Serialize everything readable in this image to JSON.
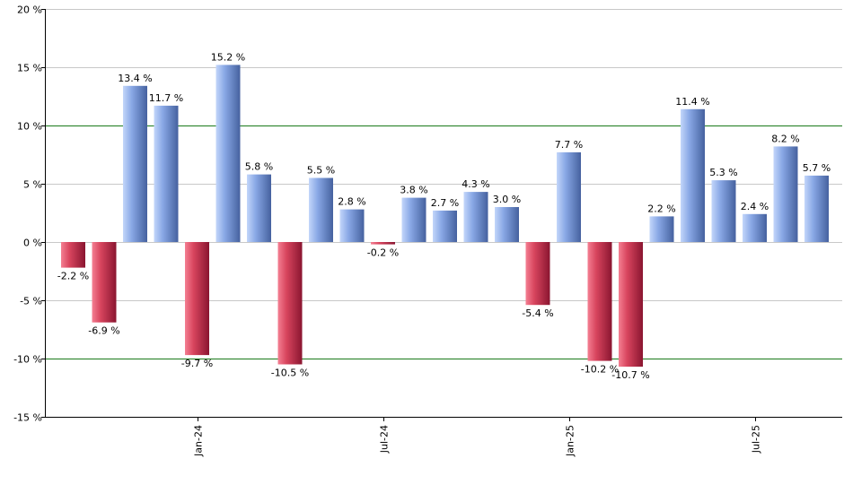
{
  "chart_data": {
    "type": "bar",
    "title": "",
    "xlabel": "",
    "ylabel": "",
    "ylim": [
      -15,
      20
    ],
    "y_ticks": [
      20,
      15,
      10,
      5,
      0,
      -5,
      -10,
      -15
    ],
    "y_tick_suffix": " %",
    "highlight_lines": [
      10,
      -10
    ],
    "x_tick_labels": [
      {
        "label": "Jan-24",
        "index": 4
      },
      {
        "label": "Jul-24",
        "index": 10
      },
      {
        "label": "Jan-25",
        "index": 16
      },
      {
        "label": "Jul-25",
        "index": 22
      }
    ],
    "values": [
      -2.2,
      -6.9,
      13.4,
      11.7,
      -9.7,
      15.2,
      5.8,
      -10.5,
      5.5,
      2.8,
      -0.2,
      3.8,
      2.7,
      4.3,
      3.0,
      -5.4,
      7.7,
      -10.2,
      -10.7,
      2.2,
      11.4,
      5.3,
      2.4,
      8.2,
      5.7
    ],
    "labels": [
      "-2.2 %",
      "-6.9 %",
      "13.4 %",
      "11.7 %",
      "-9.7 %",
      "15.2 %",
      "5.8 %",
      "-10.5 %",
      "5.5 %",
      "2.8 %",
      "-0.2 %",
      "3.8 %",
      "2.7 %",
      "4.3 %",
      "3.0 %",
      "-5.4 %",
      "7.7 %",
      "-10.2 %",
      "-10.7 %",
      "2.2 %",
      "11.4 %",
      "5.3 %",
      "2.4 %",
      "8.2 %",
      "5.7 %"
    ],
    "colors": {
      "positive_light": "#a9c4f5",
      "positive_dark": "#4a68b0",
      "negative_light": "#ee6a80",
      "negative_dark": "#8c1530",
      "grid": "#c8c8c8",
      "highlight": "#1a7a1a",
      "axis": "#000000"
    },
    "grid": true,
    "legend": "none"
  }
}
